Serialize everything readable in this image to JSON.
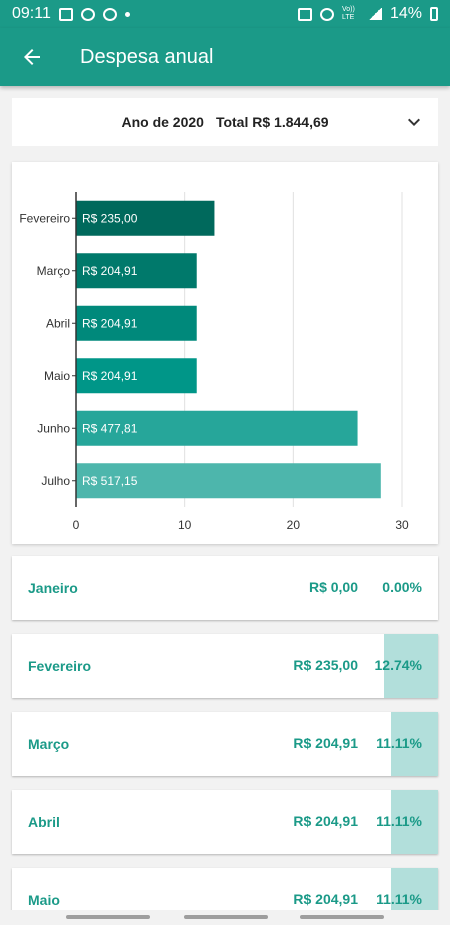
{
  "status": {
    "time": "09:11",
    "battery": "14%",
    "icons": [
      "image-icon",
      "whatsapp-icon",
      "podcast-icon",
      "dot-icon",
      "mute-icon",
      "wifi-icon",
      "volte-icon",
      "signal-icon",
      "battery-icon"
    ],
    "volte": "Vo)) LTE"
  },
  "appbar": {
    "title": "Despesa anual"
  },
  "year_selector": {
    "year_label": "Ano de 2020",
    "total_label": "Total R$  1.844,69"
  },
  "chart_data": {
    "type": "bar",
    "orientation": "horizontal",
    "categories": [
      "Fevereiro",
      "Março",
      "Abril",
      "Maio",
      "Junho",
      "Julho"
    ],
    "values": [
      12.74,
      11.11,
      11.11,
      11.11,
      25.91,
      28.05
    ],
    "data_labels": [
      "R$  235,00",
      "R$  204,91",
      "R$  204,91",
      "R$  204,91",
      "R$  477,81",
      "R$  517,15"
    ],
    "xlim": [
      0,
      30
    ],
    "x_ticks": [
      "0",
      "10",
      "20",
      "30"
    ],
    "grid": true,
    "colors": [
      "#00695c",
      "#00796b",
      "#00897b",
      "#009688",
      "#26a69a",
      "#4db6ac"
    ]
  },
  "months": [
    {
      "name": "Janeiro",
      "value": "R$  0,00",
      "pct": "0.00%",
      "fraction": 0.0
    },
    {
      "name": "Fevereiro",
      "value": "R$  235,00",
      "pct": "12.74%",
      "fraction": 0.1274
    },
    {
      "name": "Março",
      "value": "R$  204,91",
      "pct": "11.11%",
      "fraction": 0.1111
    },
    {
      "name": "Abril",
      "value": "R$  204,91",
      "pct": "11.11%",
      "fraction": 0.1111
    },
    {
      "name": "Maio",
      "value": "R$  204,91",
      "pct": "11.11%",
      "fraction": 0.1111
    }
  ]
}
